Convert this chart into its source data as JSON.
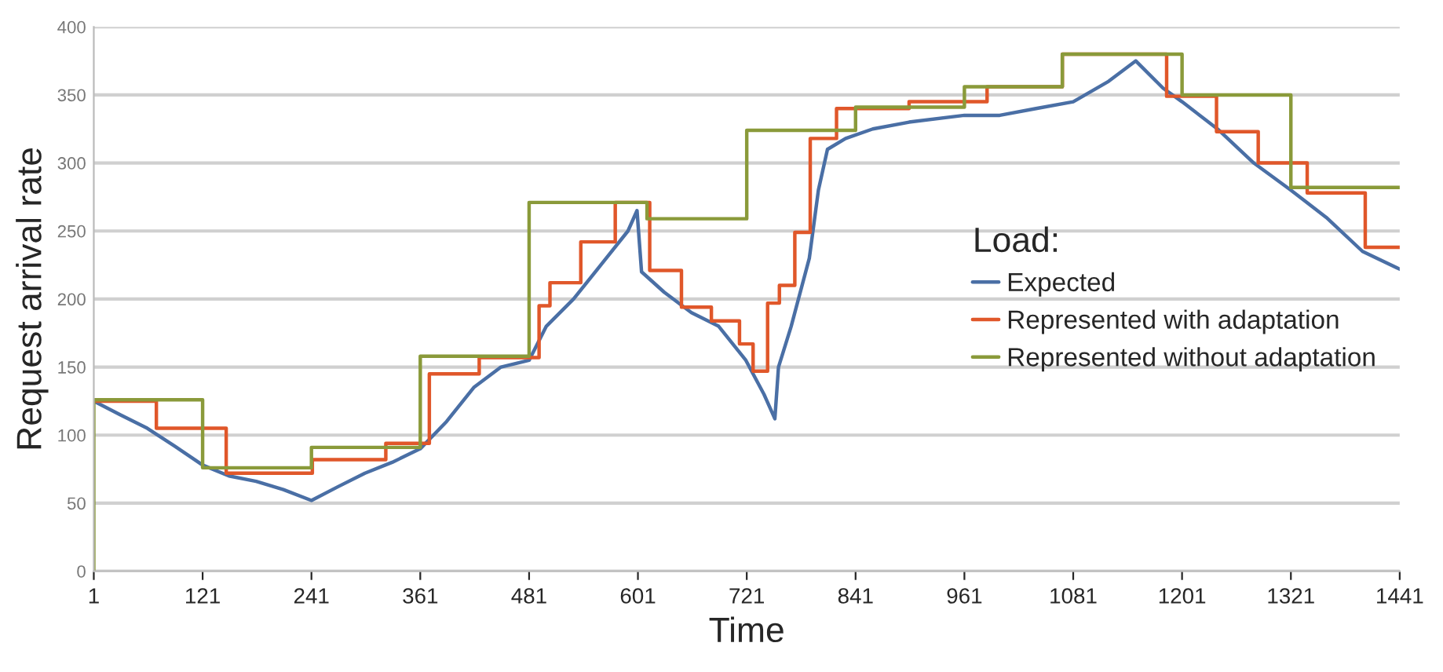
{
  "chart_data": {
    "type": "line",
    "xlabel": "Time",
    "ylabel": "Request arrival rate",
    "legend_title": "Load:",
    "xlim": [
      1,
      1441
    ],
    "xticks": [
      1,
      121,
      241,
      361,
      481,
      601,
      721,
      841,
      961,
      1081,
      1201,
      1321,
      1441
    ],
    "ylim": [
      0,
      400
    ],
    "yticks": [
      0,
      50,
      100,
      150,
      200,
      250,
      300,
      350,
      400
    ],
    "grid": "y",
    "legend": "right",
    "series": [
      {
        "name": "Expected",
        "color": "#4a6fa5",
        "x": [
          1,
          30,
          60,
          90,
          121,
          150,
          180,
          210,
          241,
          270,
          300,
          330,
          361,
          390,
          420,
          450,
          481,
          500,
          530,
          560,
          590,
          600,
          605,
          630,
          660,
          690,
          720,
          740,
          752,
          756,
          770,
          790,
          800,
          810,
          830,
          860,
          900,
          961,
          1000,
          1040,
          1081,
          1120,
          1150,
          1180,
          1201,
          1240,
          1280,
          1321,
          1360,
          1400,
          1441
        ],
        "values": [
          125,
          115,
          105,
          92,
          78,
          70,
          66,
          60,
          52,
          62,
          72,
          80,
          90,
          110,
          135,
          150,
          155,
          180,
          200,
          225,
          250,
          265,
          220,
          205,
          190,
          180,
          155,
          130,
          112,
          150,
          180,
          230,
          280,
          310,
          318,
          325,
          330,
          335,
          335,
          340,
          345,
          360,
          375,
          355,
          345,
          325,
          300,
          280,
          260,
          235,
          222
        ]
      },
      {
        "name": "Represented with adaptation",
        "type": "step",
        "color": "#e0572a",
        "x": [
          1,
          70,
          147,
          242,
          323,
          371,
          426,
          492,
          504,
          538,
          576,
          614,
          649,
          682,
          713,
          728,
          744,
          757,
          774,
          791,
          820,
          900,
          986,
          1069,
          1184,
          1239,
          1285,
          1339,
          1403,
          1441
        ],
        "values": [
          125,
          105,
          72,
          82,
          94,
          145,
          157,
          195,
          212,
          242,
          271,
          221,
          194,
          184,
          167,
          147,
          197,
          210,
          249,
          318,
          340,
          345,
          356,
          380,
          349,
          323,
          300,
          278,
          238,
          238
        ]
      },
      {
        "name": "Represented without adaptation",
        "type": "step",
        "color": "#8a9a3a",
        "x": [
          1,
          1,
          121,
          241,
          361,
          481,
          611,
          721,
          841,
          961,
          1069,
          1201,
          1321,
          1441
        ],
        "values": [
          0,
          126,
          76,
          91,
          158,
          271,
          259,
          324,
          341,
          356,
          380,
          350,
          282,
          282
        ]
      }
    ]
  }
}
